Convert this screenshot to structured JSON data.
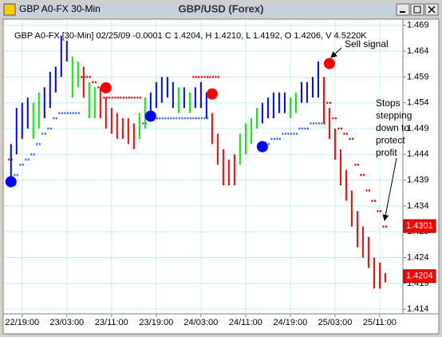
{
  "window_title": "GBP A0-FX 30-Min",
  "chart_data": {
    "type": "hilo",
    "title": "GBP/USD (Forex)",
    "info": "GBP A0-FX [30-Min] 02/25/09  -0.0001 C 1.4204, H 1.4210, L 1.4192, O 1.4206, V 4.5220K",
    "x": [
      -4,
      -2,
      0,
      2,
      4,
      6,
      8,
      10,
      12,
      14,
      16,
      18,
      20,
      22,
      24,
      26,
      28,
      30,
      32,
      34,
      36,
      38,
      40,
      42,
      44,
      46,
      48,
      50,
      52,
      54,
      56,
      58,
      60,
      62,
      64,
      66,
      68,
      70,
      72,
      74,
      76,
      78,
      80,
      82,
      84,
      86,
      88,
      90,
      92,
      94,
      96,
      98,
      100,
      102,
      104,
      106,
      108,
      110,
      112,
      114,
      116,
      118,
      120,
      122,
      124,
      126,
      128,
      130
    ],
    "high": [
      1.446,
      1.453,
      1.454,
      1.455,
      1.454,
      1.456,
      1.457,
      1.46,
      1.461,
      1.467,
      1.466,
      1.463,
      1.462,
      1.461,
      1.458,
      1.457,
      1.457,
      1.455,
      1.453,
      1.452,
      1.451,
      1.451,
      1.45,
      1.452,
      1.455,
      1.456,
      1.458,
      1.459,
      1.459,
      1.458,
      1.457,
      1.457,
      1.456,
      1.457,
      1.458,
      1.456,
      1.452,
      1.448,
      1.445,
      1.443,
      1.444,
      1.448,
      1.45,
      1.451,
      1.453,
      1.454,
      1.455,
      1.456,
      1.456,
      1.456,
      1.455,
      1.456,
      1.458,
      1.458,
      1.459,
      1.462,
      1.459,
      1.453,
      1.449,
      1.445,
      1.441,
      1.437,
      1.433,
      1.43,
      1.428,
      1.424,
      1.423,
      1.421
    ],
    "low": [
      1.438,
      1.444,
      1.447,
      1.449,
      1.447,
      1.449,
      1.451,
      1.453,
      1.456,
      1.459,
      1.462,
      1.455,
      1.457,
      1.455,
      1.451,
      1.451,
      1.451,
      1.449,
      1.448,
      1.447,
      1.447,
      1.446,
      1.445,
      1.447,
      1.449,
      1.452,
      1.453,
      1.454,
      1.455,
      1.453,
      1.452,
      1.453,
      1.452,
      1.453,
      1.453,
      1.451,
      1.446,
      1.442,
      1.438,
      1.438,
      1.438,
      1.442,
      1.444,
      1.446,
      1.449,
      1.45,
      1.451,
      1.451,
      1.452,
      1.452,
      1.451,
      1.452,
      1.454,
      1.454,
      1.455,
      1.455,
      1.45,
      1.447,
      1.443,
      1.438,
      1.435,
      1.43,
      1.426,
      1.424,
      1.422,
      1.418,
      1.418,
      1.4192
    ],
    "bar_colors": [
      "#0000ff",
      "#0000ff",
      "#0000ff",
      "#0000ff",
      "#00ee00",
      "#00ee00",
      "#0000ff",
      "#0000ff",
      "#0000ff",
      "#0000ff",
      "#0000ff",
      "#00ee00",
      "#00ee00",
      "#ff0000",
      "#00ee00",
      "#00ee00",
      "#ff0000",
      "#ff0000",
      "#ff0000",
      "#ff0000",
      "#ff0000",
      "#ff0000",
      "#ff0000",
      "#00ee00",
      "#00ee00",
      "#0000ff",
      "#0000ff",
      "#0000ff",
      "#0000ff",
      "#0000ff",
      "#00ee00",
      "#0000ff",
      "#00ee00",
      "#0000ff",
      "#0000ff",
      "#0000ff",
      "#ff0000",
      "#ff0000",
      "#ff0000",
      "#ff0000",
      "#ff0000",
      "#00ee00",
      "#00ee00",
      "#00ee00",
      "#00ee00",
      "#0000ff",
      "#0000ff",
      "#0000ff",
      "#0000ff",
      "#0000ff",
      "#00ee00",
      "#00ee00",
      "#0000ff",
      "#0000ff",
      "#0000ff",
      "#0000ff",
      "#ff0000",
      "#ff0000",
      "#ff0000",
      "#ff0000",
      "#ff0000",
      "#ff0000",
      "#ff0000",
      "#ff0000",
      "#ff0000",
      "#ff0000",
      "#ff0000",
      "#ff0000"
    ],
    "stop_long": {
      "color": "#3366ff",
      "values": [
        null,
        1.44,
        1.442,
        1.443,
        1.444,
        1.446,
        1.448,
        1.449,
        1.451,
        1.452,
        1.452,
        1.452,
        1.452,
        null,
        null,
        null,
        null,
        null,
        null,
        null,
        null,
        null,
        null,
        null,
        1.45,
        1.451,
        1.451,
        1.451,
        1.451,
        1.451,
        1.451,
        1.451,
        1.451,
        1.451,
        1.451,
        1.451,
        null,
        null,
        null,
        null,
        null,
        null,
        null,
        null,
        null,
        1.446,
        1.446,
        1.447,
        1.447,
        1.448,
        1.448,
        1.448,
        1.449,
        1.449,
        1.45,
        1.45,
        1.45,
        null,
        null,
        null,
        null,
        null,
        null,
        null,
        null,
        null,
        null,
        null
      ]
    },
    "stop_short": {
      "color": "#ff0000",
      "values": [
        1.443,
        null,
        null,
        null,
        null,
        null,
        null,
        null,
        null,
        null,
        null,
        null,
        null,
        1.459,
        1.459,
        1.458,
        1.457,
        1.455,
        1.455,
        1.455,
        1.455,
        1.455,
        1.455,
        1.455,
        null,
        null,
        null,
        null,
        null,
        null,
        null,
        null,
        null,
        1.459,
        1.459,
        1.459,
        1.459,
        1.459,
        null,
        null,
        null,
        null,
        null,
        null,
        null,
        null,
        null,
        null,
        null,
        null,
        null,
        null,
        null,
        null,
        null,
        null,
        null,
        1.454,
        1.451,
        1.449,
        1.448,
        1.447,
        1.442,
        1.44,
        1.437,
        1.435,
        1.433,
        1.43
      ]
    },
    "signals": {
      "x": [
        -4,
        30,
        46,
        68,
        86,
        110
      ],
      "values": [
        1.4387,
        1.4569,
        1.4514,
        1.4557,
        1.4455,
        1.4616
      ],
      "colors": [
        "#0000ff",
        "#ff0000",
        "#0000ff",
        "#ff0000",
        "#0000ff",
        "#ff0000"
      ]
    },
    "price_labels": [
      1.4301,
      1.4204
    ],
    "price_label_color": "#ff0000",
    "annotations": [
      [
        "Sell signal"
      ],
      [
        "Stops",
        "stepping",
        "down to",
        "protect",
        "profit"
      ]
    ],
    "xlim": [
      -6.5,
      136.3
    ],
    "ylim": [
      1.4131,
      1.4702
    ],
    "xticks": [
      {
        "value": 0,
        "label": "22/19:00"
      },
      {
        "value": 16,
        "label": "23/03:00"
      },
      {
        "value": 32,
        "label": "23/11:00"
      },
      {
        "value": 48,
        "label": "23/19:00"
      },
      {
        "value": 64,
        "label": "24/03:00"
      },
      {
        "value": 80,
        "label": "24/11:00"
      },
      {
        "value": 96,
        "label": "24/19:00"
      },
      {
        "value": 112,
        "label": "25/03:00"
      },
      {
        "value": 128,
        "label": "25/11:00"
      }
    ],
    "yticks": [
      1.469,
      1.464,
      1.459,
      1.454,
      1.449,
      1.444,
      1.439,
      1.434,
      1.429,
      1.424,
      1.419,
      1.414
    ],
    "grid": true
  }
}
